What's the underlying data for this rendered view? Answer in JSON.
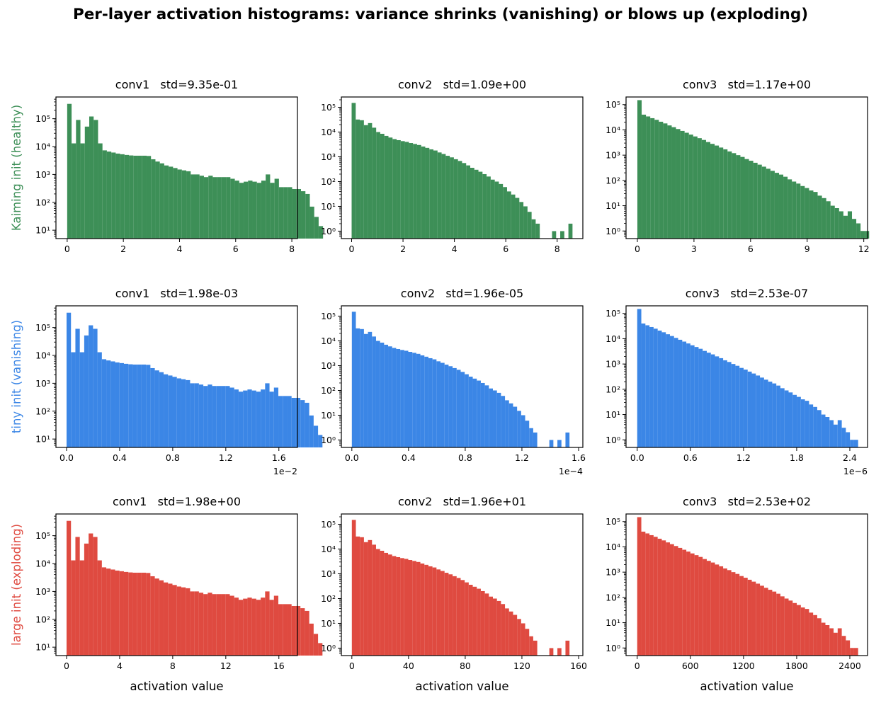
{
  "title": "Per-layer activation histograms: variance shrinks (vanishing) or blows up (exploding)",
  "xlabel": "activation value",
  "colors": {
    "kaiming": "#3d8f57",
    "tiny": "#3b86e6",
    "large": "#df4a40"
  },
  "chart_data": [
    {
      "type": "bar",
      "row": "kaiming",
      "ylabel": "Kaiming init (healthy)",
      "title": "conv1   std=9.35e-01",
      "yscale": "log",
      "ylim": [
        5,
        600000
      ],
      "xlim": [
        -0.4,
        8.2
      ],
      "xticks": [
        0,
        2,
        4,
        6,
        8
      ],
      "xtick_labels": [
        "0",
        "2",
        "4",
        "6",
        "8"
      ],
      "yticks": [
        10,
        100,
        1000,
        10000,
        100000
      ],
      "ytick_labels": [
        "10¹",
        "10²",
        "10³",
        "10⁴",
        "10⁵"
      ],
      "offset_label": "",
      "bin_start": 0,
      "bin_width": 0.1571,
      "values": [
        340000,
        13000,
        90000,
        13000,
        52000,
        120000,
        90000,
        13000,
        7300,
        6600,
        6100,
        5600,
        5300,
        5000,
        4800,
        4700,
        4700,
        4700,
        4600,
        3500,
        2900,
        2500,
        2100,
        1900,
        1700,
        1500,
        1400,
        1300,
        1000,
        1000,
        900,
        800,
        900,
        800,
        800,
        800,
        800,
        700,
        600,
        500,
        550,
        600,
        550,
        500,
        600,
        1000,
        500,
        700,
        350,
        350,
        350,
        300,
        300,
        250,
        200,
        70,
        30,
        14
      ]
    },
    {
      "type": "bar",
      "row": "kaiming",
      "ylabel": "",
      "title": "conv2   std=1.09e+00",
      "yscale": "log",
      "ylim": [
        0.5,
        260000
      ],
      "xlim": [
        -0.4,
        9.0
      ],
      "xticks": [
        0,
        2,
        4,
        6,
        8
      ],
      "xtick_labels": [
        "0",
        "2",
        "4",
        "6",
        "8"
      ],
      "yticks": [
        1,
        10,
        100,
        1000,
        10000,
        100000
      ],
      "ytick_labels": [
        "10⁰",
        "10¹",
        "10²",
        "10³",
        "10⁴",
        "10⁵"
      ],
      "offset_label": "",
      "bin_start": 0,
      "bin_width": 0.1592,
      "values": [
        150000,
        32000,
        30000,
        19000,
        23000,
        15000,
        10000,
        8500,
        7000,
        6000,
        5200,
        4700,
        4300,
        4000,
        3600,
        3300,
        3000,
        2600,
        2300,
        2000,
        1800,
        1500,
        1300,
        1100,
        950,
        800,
        680,
        560,
        450,
        360,
        300,
        250,
        200,
        160,
        120,
        100,
        80,
        60,
        40,
        30,
        22,
        15,
        10,
        6,
        3,
        2,
        0,
        0,
        0,
        1,
        0,
        1,
        0,
        2
      ]
    },
    {
      "type": "bar",
      "row": "kaiming",
      "ylabel": "",
      "title": "conv3   std=1.17e+00",
      "yscale": "log",
      "ylim": [
        0.5,
        200000
      ],
      "xlim": [
        -0.6,
        12.2
      ],
      "xticks": [
        0,
        3,
        6,
        9,
        12
      ],
      "xtick_labels": [
        "0",
        "3",
        "6",
        "9",
        "12"
      ],
      "yticks": [
        1,
        10,
        100,
        1000,
        10000,
        100000
      ],
      "ytick_labels": [
        "10⁰",
        "10¹",
        "10²",
        "10³",
        "10⁴",
        "10⁵"
      ],
      "offset_label": "",
      "bin_start": 0,
      "bin_width": 0.2275,
      "values": [
        150000,
        40000,
        34000,
        29000,
        25000,
        21000,
        18000,
        15000,
        12800,
        10800,
        9100,
        7700,
        6500,
        5500,
        4700,
        4000,
        3300,
        2800,
        2400,
        2000,
        1700,
        1400,
        1200,
        1000,
        850,
        700,
        600,
        500,
        420,
        350,
        290,
        240,
        200,
        170,
        140,
        110,
        90,
        75,
        60,
        50,
        40,
        35,
        25,
        20,
        15,
        10,
        8,
        6,
        4,
        6,
        3,
        2,
        1,
        1
      ]
    },
    {
      "type": "bar",
      "row": "tiny",
      "ylabel": "tiny init (vanishing)",
      "title": "conv1   std=1.98e-03",
      "yscale": "log",
      "ylim": [
        5,
        600000
      ],
      "xlim": [
        -0.0008,
        0.0174
      ],
      "xticks": [
        0,
        0.004,
        0.008,
        0.012,
        0.016
      ],
      "xtick_labels": [
        "0.0",
        "0.4",
        "0.8",
        "1.2",
        "1.6"
      ],
      "yticks": [
        10,
        100,
        1000,
        10000,
        100000
      ],
      "ytick_labels": [
        "10¹",
        "10²",
        "10³",
        "10⁴",
        "10⁵"
      ],
      "offset_label": "1e−2",
      "bin_start": 0,
      "bin_width": 0.0003325,
      "values": [
        340000,
        13000,
        90000,
        13000,
        52000,
        120000,
        90000,
        13000,
        7300,
        6600,
        6100,
        5600,
        5300,
        5000,
        4800,
        4700,
        4700,
        4700,
        4600,
        3500,
        2900,
        2500,
        2100,
        1900,
        1700,
        1500,
        1400,
        1300,
        1000,
        1000,
        900,
        800,
        900,
        800,
        800,
        800,
        800,
        700,
        600,
        500,
        550,
        600,
        550,
        500,
        600,
        1000,
        500,
        700,
        350,
        350,
        350,
        300,
        300,
        250,
        200,
        70,
        30,
        14
      ]
    },
    {
      "type": "bar",
      "row": "tiny",
      "ylabel": "",
      "title": "conv2   std=1.96e-05",
      "yscale": "log",
      "ylim": [
        0.5,
        260000
      ],
      "xlim": [
        -7.4e-06,
        0.000163
      ],
      "xticks": [
        0,
        4e-05,
        8e-05,
        0.00012,
        0.00016
      ],
      "xtick_labels": [
        "0.0",
        "0.4",
        "0.8",
        "1.2",
        "1.6"
      ],
      "yticks": [
        1,
        10,
        100,
        1000,
        10000,
        100000
      ],
      "ytick_labels": [
        "10⁰",
        "10¹",
        "10²",
        "10³",
        "10⁴",
        "10⁵"
      ],
      "offset_label": "1e−4",
      "bin_start": 0,
      "bin_width": 2.844e-06,
      "values": [
        150000,
        32000,
        30000,
        19000,
        23000,
        15000,
        10000,
        8500,
        7000,
        6000,
        5200,
        4700,
        4300,
        4000,
        3600,
        3300,
        3000,
        2600,
        2300,
        2000,
        1800,
        1500,
        1300,
        1100,
        950,
        800,
        680,
        560,
        450,
        360,
        300,
        250,
        200,
        160,
        120,
        100,
        80,
        60,
        40,
        30,
        22,
        15,
        10,
        6,
        3,
        2,
        0,
        0,
        0,
        1,
        0,
        1,
        0,
        2
      ]
    },
    {
      "type": "bar",
      "row": "tiny",
      "ylabel": "",
      "title": "conv3   std=2.53e-07",
      "yscale": "log",
      "ylim": [
        0.5,
        200000
      ],
      "xlim": [
        -1.26e-07,
        2.6e-06
      ],
      "xticks": [
        0,
        6e-07,
        1.2e-06,
        1.8e-06,
        2.4e-06
      ],
      "xtick_labels": [
        "0.0",
        "0.6",
        "1.2",
        "1.8",
        "2.4"
      ],
      "yticks": [
        1,
        10,
        100,
        1000,
        10000,
        100000
      ],
      "ytick_labels": [
        "10⁰",
        "10¹",
        "10²",
        "10³",
        "10⁴",
        "10⁵"
      ],
      "offset_label": "1e−6",
      "bin_start": 0,
      "bin_width": 4.618e-08,
      "values": [
        150000,
        40000,
        34000,
        29000,
        25000,
        21000,
        18000,
        15000,
        12800,
        10800,
        9100,
        7700,
        6500,
        5500,
        4700,
        4000,
        3300,
        2800,
        2400,
        2000,
        1700,
        1400,
        1200,
        1000,
        850,
        700,
        600,
        500,
        420,
        350,
        290,
        240,
        200,
        170,
        140,
        110,
        90,
        75,
        60,
        50,
        40,
        35,
        25,
        20,
        15,
        10,
        8,
        6,
        4,
        6,
        3,
        2,
        1,
        1
      ]
    },
    {
      "type": "bar",
      "row": "large",
      "ylabel": "large init (exploding)",
      "title": "conv1   std=1.98e+00",
      "yscale": "log",
      "ylim": [
        5,
        600000
      ],
      "xlim": [
        -0.8,
        17.4
      ],
      "xticks": [
        0,
        4,
        8,
        12,
        16
      ],
      "xtick_labels": [
        "0",
        "4",
        "8",
        "12",
        "16"
      ],
      "yticks": [
        10,
        100,
        1000,
        10000,
        100000
      ],
      "ytick_labels": [
        "10¹",
        "10²",
        "10³",
        "10⁴",
        "10⁵"
      ],
      "offset_label": "",
      "bin_start": 0,
      "bin_width": 0.3325,
      "values": [
        340000,
        13000,
        90000,
        13000,
        52000,
        120000,
        90000,
        13000,
        7300,
        6600,
        6100,
        5600,
        5300,
        5000,
        4800,
        4700,
        4700,
        4700,
        4600,
        3500,
        2900,
        2500,
        2100,
        1900,
        1700,
        1500,
        1400,
        1300,
        1000,
        1000,
        900,
        800,
        900,
        800,
        800,
        800,
        800,
        700,
        600,
        500,
        550,
        600,
        550,
        500,
        600,
        1000,
        500,
        700,
        350,
        350,
        350,
        300,
        300,
        250,
        200,
        70,
        30,
        14
      ]
    },
    {
      "type": "bar",
      "row": "large",
      "ylabel": "",
      "title": "conv2   std=1.96e+01",
      "yscale": "log",
      "ylim": [
        0.5,
        260000
      ],
      "xlim": [
        -7.4,
        163
      ],
      "xticks": [
        0,
        40,
        80,
        120,
        160
      ],
      "xtick_labels": [
        "0",
        "40",
        "80",
        "120",
        "160"
      ],
      "yticks": [
        1,
        10,
        100,
        1000,
        10000,
        100000
      ],
      "ytick_labels": [
        "10⁰",
        "10¹",
        "10²",
        "10³",
        "10⁴",
        "10⁵"
      ],
      "offset_label": "",
      "bin_start": 0,
      "bin_width": 2.844,
      "values": [
        150000,
        32000,
        30000,
        19000,
        23000,
        15000,
        10000,
        8500,
        7000,
        6000,
        5200,
        4700,
        4300,
        4000,
        3600,
        3300,
        3000,
        2600,
        2300,
        2000,
        1800,
        1500,
        1300,
        1100,
        950,
        800,
        680,
        560,
        450,
        360,
        300,
        250,
        200,
        160,
        120,
        100,
        80,
        60,
        40,
        30,
        22,
        15,
        10,
        6,
        3,
        2,
        0,
        0,
        0,
        1,
        0,
        1,
        0,
        2
      ]
    },
    {
      "type": "bar",
      "row": "large",
      "ylabel": "",
      "title": "conv3   std=2.53e+02",
      "yscale": "log",
      "ylim": [
        0.5,
        200000
      ],
      "xlim": [
        -126,
        2600
      ],
      "xticks": [
        0,
        600,
        1200,
        1800,
        2400
      ],
      "xtick_labels": [
        "0",
        "600",
        "1200",
        "1800",
        "2400"
      ],
      "yticks": [
        1,
        10,
        100,
        1000,
        10000,
        100000
      ],
      "ytick_labels": [
        "10⁰",
        "10¹",
        "10²",
        "10³",
        "10⁴",
        "10⁵"
      ],
      "offset_label": "",
      "bin_start": 0,
      "bin_width": 46.18,
      "values": [
        150000,
        40000,
        34000,
        29000,
        25000,
        21000,
        18000,
        15000,
        12800,
        10800,
        9100,
        7700,
        6500,
        5500,
        4700,
        4000,
        3300,
        2800,
        2400,
        2000,
        1700,
        1400,
        1200,
        1000,
        850,
        700,
        600,
        500,
        420,
        350,
        290,
        240,
        200,
        170,
        140,
        110,
        90,
        75,
        60,
        50,
        40,
        35,
        25,
        20,
        15,
        10,
        8,
        6,
        4,
        6,
        3,
        2,
        1,
        1
      ]
    }
  ]
}
